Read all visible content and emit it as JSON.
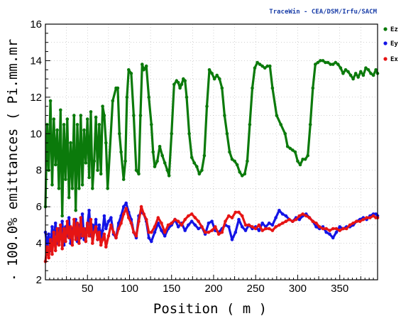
{
  "credit": "TraceWin - CEA/DSM/Irfu/SACM",
  "chart_data": {
    "type": "line",
    "title": "",
    "xlabel": "Position ( m )",
    "ylabel": "100.0% emittances ( Pi.mm.mr",
    "ylabel_cut_char": ".",
    "xlim": [
      0,
      395
    ],
    "ylim": [
      2,
      16
    ],
    "xticks": [
      50,
      100,
      150,
      200,
      250,
      300,
      350
    ],
    "yticks": [
      2,
      4,
      6,
      8,
      10,
      12,
      14,
      16
    ],
    "grid": true,
    "legend_position": "right",
    "series": [
      {
        "name": "Ez",
        "color": "#0b7a0b",
        "x": [
          0,
          2,
          4,
          6,
          8,
          10,
          12,
          14,
          16,
          18,
          20,
          22,
          24,
          26,
          28,
          30,
          32,
          34,
          36,
          38,
          40,
          42,
          44,
          46,
          48,
          50,
          52,
          54,
          56,
          58,
          60,
          62,
          64,
          66,
          68,
          70,
          72,
          74,
          80,
          84,
          86,
          88,
          90,
          93,
          95,
          97,
          99,
          102,
          105,
          108,
          111,
          113,
          115,
          117,
          120,
          123,
          126,
          128,
          130,
          133,
          136,
          139,
          142,
          145,
          147,
          150,
          153,
          156,
          158,
          160,
          162,
          164,
          166,
          168,
          171,
          174,
          177,
          180,
          183,
          186,
          189,
          192,
          195,
          198,
          201,
          204,
          207,
          210,
          213,
          216,
          219,
          222,
          225,
          228,
          231,
          234,
          237,
          240,
          243,
          246,
          249,
          252,
          255,
          258,
          261,
          264,
          267,
          270,
          275,
          280,
          285,
          288,
          291,
          294,
          297,
          300,
          303,
          306,
          309,
          312,
          315,
          318,
          321,
          324,
          327,
          330,
          333,
          336,
          339,
          342,
          345,
          348,
          351,
          354,
          357,
          360,
          363,
          366,
          369,
          372,
          375,
          378,
          381,
          384,
          387,
          390,
          393,
          395
        ],
        "y": [
          6.0,
          10.5,
          8.0,
          11.8,
          7.2,
          10.8,
          8.3,
          10.2,
          7.0,
          11.3,
          5.5,
          10.5,
          7.5,
          10.8,
          6.5,
          9.5,
          7.0,
          11.0,
          5.8,
          10.5,
          7.0,
          11.0,
          7.2,
          10.2,
          8.4,
          10.8,
          7.6,
          11.2,
          7.0,
          8.5,
          10.9,
          8.0,
          10.5,
          7.8,
          11.5,
          11.0,
          9.5,
          7.0,
          11.8,
          12.5,
          12.5,
          10.0,
          9.0,
          7.5,
          8.5,
          12.0,
          13.5,
          13.3,
          11.0,
          8.0,
          7.8,
          11.0,
          13.8,
          13.5,
          13.7,
          12.0,
          10.5,
          9.0,
          8.2,
          8.5,
          9.3,
          8.8,
          8.4,
          8.0,
          7.7,
          10.0,
          12.7,
          12.9,
          12.8,
          12.5,
          12.7,
          13.0,
          12.9,
          12.0,
          10.0,
          8.7,
          8.4,
          8.2,
          7.8,
          8.0,
          8.8,
          11.5,
          13.5,
          13.3,
          13.0,
          13.2,
          13.0,
          12.5,
          11.0,
          10.0,
          9.0,
          8.6,
          8.5,
          8.3,
          7.9,
          7.7,
          7.8,
          8.5,
          10.5,
          12.5,
          13.6,
          13.9,
          13.8,
          13.7,
          13.6,
          13.7,
          13.7,
          12.5,
          11.0,
          10.5,
          10.0,
          9.3,
          9.2,
          9.1,
          9.0,
          8.5,
          8.3,
          8.6,
          8.6,
          8.8,
          10.5,
          12.5,
          13.8,
          13.9,
          14.0,
          14.0,
          13.9,
          13.9,
          13.8,
          13.8,
          13.9,
          13.8,
          13.6,
          13.3,
          13.5,
          13.4,
          13.2,
          13.0,
          13.3,
          13.1,
          13.4,
          13.2,
          13.6,
          13.5,
          13.3,
          13.2,
          13.5,
          13.3
        ]
      },
      {
        "name": "Ey",
        "color": "#1414e6",
        "x": [
          0,
          2,
          4,
          6,
          8,
          10,
          12,
          14,
          16,
          18,
          20,
          22,
          24,
          26,
          28,
          30,
          32,
          34,
          36,
          38,
          40,
          42,
          44,
          46,
          48,
          50,
          52,
          54,
          56,
          58,
          60,
          62,
          64,
          66,
          68,
          70,
          72,
          75,
          78,
          81,
          84,
          87,
          90,
          93,
          96,
          99,
          102,
          105,
          108,
          111,
          114,
          117,
          120,
          123,
          126,
          130,
          134,
          138,
          142,
          146,
          150,
          154,
          158,
          162,
          166,
          170,
          174,
          178,
          182,
          186,
          190,
          194,
          198,
          202,
          206,
          210,
          214,
          218,
          222,
          226,
          230,
          234,
          238,
          242,
          246,
          250,
          254,
          258,
          262,
          266,
          270,
          274,
          278,
          282,
          286,
          290,
          294,
          298,
          302,
          306,
          310,
          314,
          318,
          322,
          326,
          330,
          334,
          338,
          342,
          346,
          350,
          354,
          358,
          362,
          366,
          370,
          374,
          378,
          382,
          386,
          390,
          393,
          395
        ],
        "y": [
          4.6,
          3.9,
          4.5,
          3.6,
          4.9,
          4.2,
          5.1,
          4.0,
          4.8,
          4.3,
          5.2,
          3.9,
          4.9,
          4.4,
          5.4,
          4.0,
          4.8,
          4.6,
          5.3,
          4.1,
          5.0,
          4.3,
          5.6,
          4.2,
          4.7,
          5.0,
          5.8,
          4.4,
          5.0,
          4.6,
          5.3,
          4.2,
          5.0,
          4.3,
          4.7,
          5.5,
          4.8,
          5.2,
          5.4,
          4.5,
          4.3,
          5.1,
          5.5,
          6.0,
          6.2,
          5.7,
          5.3,
          4.6,
          4.3,
          5.5,
          5.7,
          5.6,
          5.2,
          4.3,
          4.1,
          4.6,
          5.1,
          4.7,
          4.4,
          4.8,
          5.0,
          5.3,
          4.9,
          5.1,
          4.7,
          5.0,
          5.2,
          5.0,
          4.8,
          4.9,
          4.5,
          5.1,
          5.2,
          4.7,
          4.6,
          4.8,
          5.0,
          4.9,
          4.2,
          4.6,
          5.3,
          4.9,
          4.7,
          5.0,
          4.8,
          4.9,
          4.7,
          5.1,
          4.9,
          5.1,
          5.0,
          5.4,
          5.8,
          5.6,
          5.5,
          5.3,
          5.2,
          5.4,
          5.3,
          5.5,
          5.6,
          5.4,
          5.2,
          4.9,
          4.8,
          4.9,
          4.6,
          4.5,
          4.3,
          4.6,
          4.9,
          4.8,
          4.9,
          4.9,
          5.0,
          5.2,
          5.3,
          5.4,
          5.3,
          5.5,
          5.6,
          5.6,
          5.5
        ]
      },
      {
        "name": "Ex",
        "color": "#e61414",
        "x": [
          0,
          2,
          4,
          6,
          8,
          10,
          12,
          14,
          16,
          18,
          20,
          22,
          24,
          26,
          28,
          30,
          32,
          34,
          36,
          38,
          40,
          42,
          44,
          46,
          48,
          50,
          52,
          54,
          56,
          58,
          60,
          62,
          64,
          66,
          68,
          70,
          72,
          75,
          78,
          81,
          84,
          87,
          90,
          93,
          96,
          99,
          102,
          105,
          108,
          111,
          114,
          117,
          120,
          123,
          126,
          130,
          134,
          138,
          142,
          146,
          150,
          154,
          158,
          162,
          166,
          170,
          174,
          178,
          182,
          186,
          190,
          194,
          198,
          202,
          206,
          210,
          214,
          218,
          222,
          226,
          230,
          234,
          238,
          242,
          246,
          250,
          254,
          258,
          262,
          266,
          270,
          274,
          278,
          282,
          286,
          290,
          294,
          298,
          302,
          306,
          310,
          314,
          318,
          322,
          326,
          330,
          334,
          338,
          342,
          346,
          350,
          354,
          358,
          362,
          366,
          370,
          374,
          378,
          382,
          386,
          390,
          393,
          395
        ],
        "y": [
          3.0,
          3.8,
          3.2,
          4.2,
          3.4,
          4.6,
          3.6,
          4.8,
          3.9,
          5.0,
          3.7,
          4.8,
          4.1,
          5.2,
          4.3,
          4.9,
          3.9,
          5.3,
          4.2,
          5.1,
          4.0,
          5.4,
          4.4,
          4.8,
          4.1,
          5.1,
          4.4,
          5.3,
          4.0,
          4.6,
          4.9,
          4.2,
          4.6,
          3.9,
          4.2,
          4.5,
          3.8,
          4.4,
          5.0,
          4.6,
          4.3,
          4.8,
          5.1,
          5.6,
          5.9,
          5.4,
          5.1,
          4.6,
          4.4,
          5.2,
          6.0,
          5.6,
          5.3,
          4.6,
          4.6,
          4.9,
          5.4,
          5.1,
          4.6,
          5.0,
          5.1,
          5.3,
          5.2,
          5.0,
          5.3,
          5.5,
          5.6,
          5.4,
          5.2,
          4.9,
          4.6,
          4.6,
          4.7,
          4.9,
          4.5,
          4.6,
          5.2,
          5.5,
          5.4,
          5.7,
          5.7,
          5.5,
          5.0,
          5.0,
          4.9,
          4.8,
          5.0,
          4.7,
          4.8,
          4.8,
          4.7,
          4.9,
          5.0,
          5.1,
          5.2,
          5.3,
          5.2,
          5.3,
          5.5,
          5.6,
          5.5,
          5.4,
          5.2,
          5.1,
          4.9,
          4.8,
          4.8,
          4.7,
          4.8,
          4.8,
          4.7,
          4.8,
          4.8,
          5.0,
          5.1,
          5.2,
          5.2,
          5.3,
          5.4,
          5.4,
          5.5,
          5.4,
          5.4
        ]
      }
    ]
  }
}
